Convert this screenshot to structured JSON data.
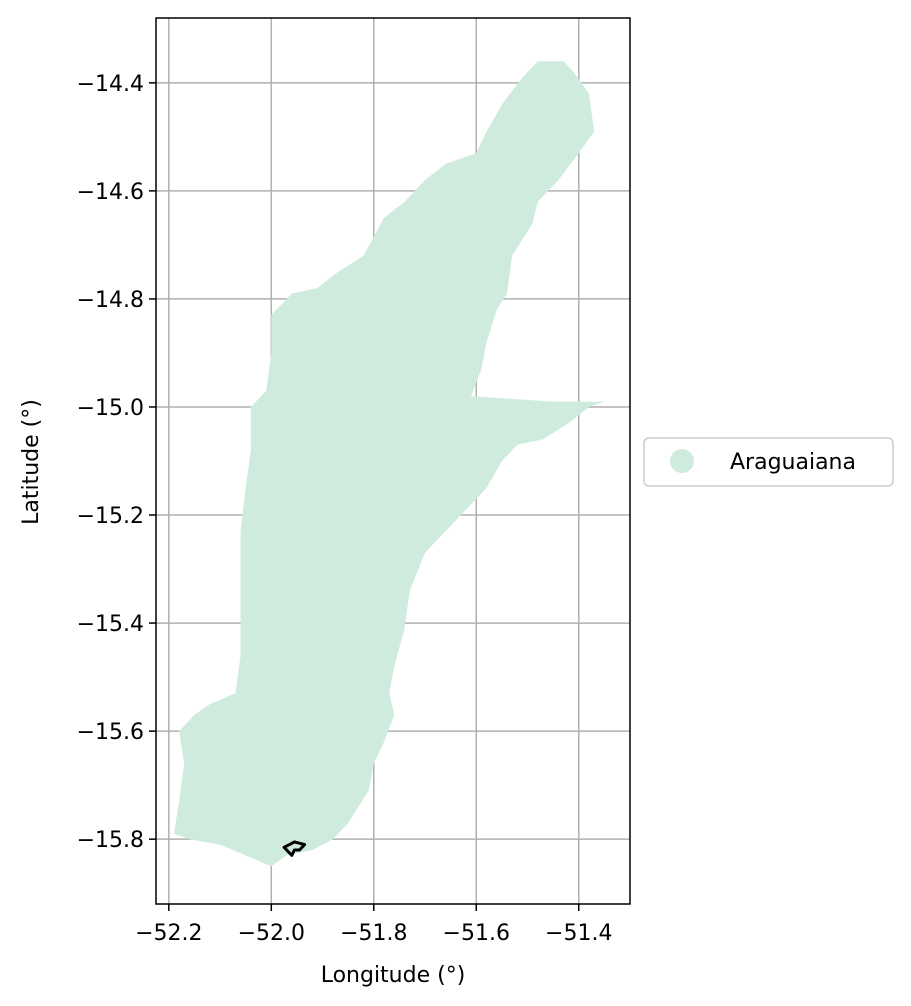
{
  "chart_data": {
    "type": "map",
    "title": "",
    "xlabel": "Longitude (°)",
    "ylabel": "Latitude (°)",
    "xlim": [
      -52.225,
      -51.3
    ],
    "ylim": [
      -15.92,
      -14.28
    ],
    "xticks": [
      -52.2,
      -52.0,
      -51.8,
      -51.6,
      -51.4
    ],
    "yticks": [
      -14.4,
      -14.6,
      -14.8,
      -15.0,
      -15.2,
      -15.4,
      -15.6,
      -15.8
    ],
    "xtick_labels": [
      "−52.2",
      "−52.0",
      "−51.8",
      "−51.6",
      "−51.4"
    ],
    "ytick_labels": [
      "−14.4",
      "−14.6",
      "−14.8",
      "−15.0",
      "−15.2",
      "−15.4",
      "−15.6",
      "−15.8"
    ],
    "grid": true,
    "legend": {
      "placement": "center-right (outside axes)",
      "entries": [
        {
          "label": "Araguaiana",
          "color": "#cfebdd"
        }
      ]
    },
    "region": {
      "name": "Araguaiana",
      "fill_color": "#cfebdd",
      "outline": [
        [
          -51.48,
          -14.36
        ],
        [
          -51.43,
          -14.36
        ],
        [
          -51.41,
          -14.38
        ],
        [
          -51.38,
          -14.42
        ],
        [
          -51.37,
          -14.49
        ],
        [
          -51.4,
          -14.53
        ],
        [
          -51.44,
          -14.58
        ],
        [
          -51.48,
          -14.62
        ],
        [
          -51.49,
          -14.66
        ],
        [
          -51.53,
          -14.72
        ],
        [
          -51.54,
          -14.79
        ],
        [
          -51.56,
          -14.82
        ],
        [
          -51.58,
          -14.88
        ],
        [
          -51.59,
          -14.93
        ],
        [
          -51.61,
          -14.98
        ],
        [
          -51.45,
          -14.99
        ],
        [
          -51.35,
          -14.99
        ],
        [
          -51.38,
          -15.0
        ],
        [
          -51.42,
          -15.03
        ],
        [
          -51.47,
          -15.06
        ],
        [
          -51.52,
          -15.07
        ],
        [
          -51.55,
          -15.1
        ],
        [
          -51.58,
          -15.15
        ],
        [
          -51.62,
          -15.19
        ],
        [
          -51.66,
          -15.23
        ],
        [
          -51.7,
          -15.27
        ],
        [
          -51.73,
          -15.34
        ],
        [
          -51.74,
          -15.41
        ],
        [
          -51.76,
          -15.48
        ],
        [
          -51.77,
          -15.53
        ],
        [
          -51.76,
          -15.57
        ],
        [
          -51.78,
          -15.62
        ],
        [
          -51.8,
          -15.66
        ],
        [
          -51.81,
          -15.71
        ],
        [
          -51.85,
          -15.77
        ],
        [
          -51.88,
          -15.8
        ],
        [
          -51.92,
          -15.82
        ],
        [
          -51.97,
          -15.83
        ],
        [
          -52.0,
          -15.85
        ],
        [
          -52.05,
          -15.83
        ],
        [
          -52.1,
          -15.81
        ],
        [
          -52.16,
          -15.8
        ],
        [
          -52.19,
          -15.79
        ],
        [
          -52.18,
          -15.73
        ],
        [
          -52.17,
          -15.66
        ],
        [
          -52.18,
          -15.6
        ],
        [
          -52.15,
          -15.57
        ],
        [
          -52.12,
          -15.55
        ],
        [
          -52.07,
          -15.53
        ],
        [
          -52.06,
          -15.46
        ],
        [
          -52.06,
          -15.38
        ],
        [
          -52.06,
          -15.3
        ],
        [
          -52.06,
          -15.23
        ],
        [
          -52.05,
          -15.15
        ],
        [
          -52.04,
          -15.08
        ],
        [
          -52.04,
          -15.0
        ],
        [
          -52.01,
          -14.97
        ],
        [
          -52.0,
          -14.9
        ],
        [
          -52.0,
          -14.83
        ],
        [
          -51.96,
          -14.79
        ],
        [
          -51.91,
          -14.78
        ],
        [
          -51.87,
          -14.75
        ],
        [
          -51.82,
          -14.72
        ],
        [
          -51.78,
          -14.65
        ],
        [
          -51.74,
          -14.62
        ],
        [
          -51.7,
          -14.58
        ],
        [
          -51.66,
          -14.55
        ],
        [
          -51.6,
          -14.53
        ],
        [
          -51.58,
          -14.49
        ],
        [
          -51.55,
          -14.44
        ],
        [
          -51.51,
          -14.39
        ]
      ]
    },
    "marker": {
      "description": "small black outlined polygon",
      "color": "#000000",
      "points": [
        [
          -51.96,
          -15.83
        ],
        [
          -51.975,
          -15.815
        ],
        [
          -51.955,
          -15.805
        ],
        [
          -51.935,
          -15.81
        ],
        [
          -51.945,
          -15.82
        ],
        [
          -51.955,
          -15.82
        ]
      ]
    }
  }
}
